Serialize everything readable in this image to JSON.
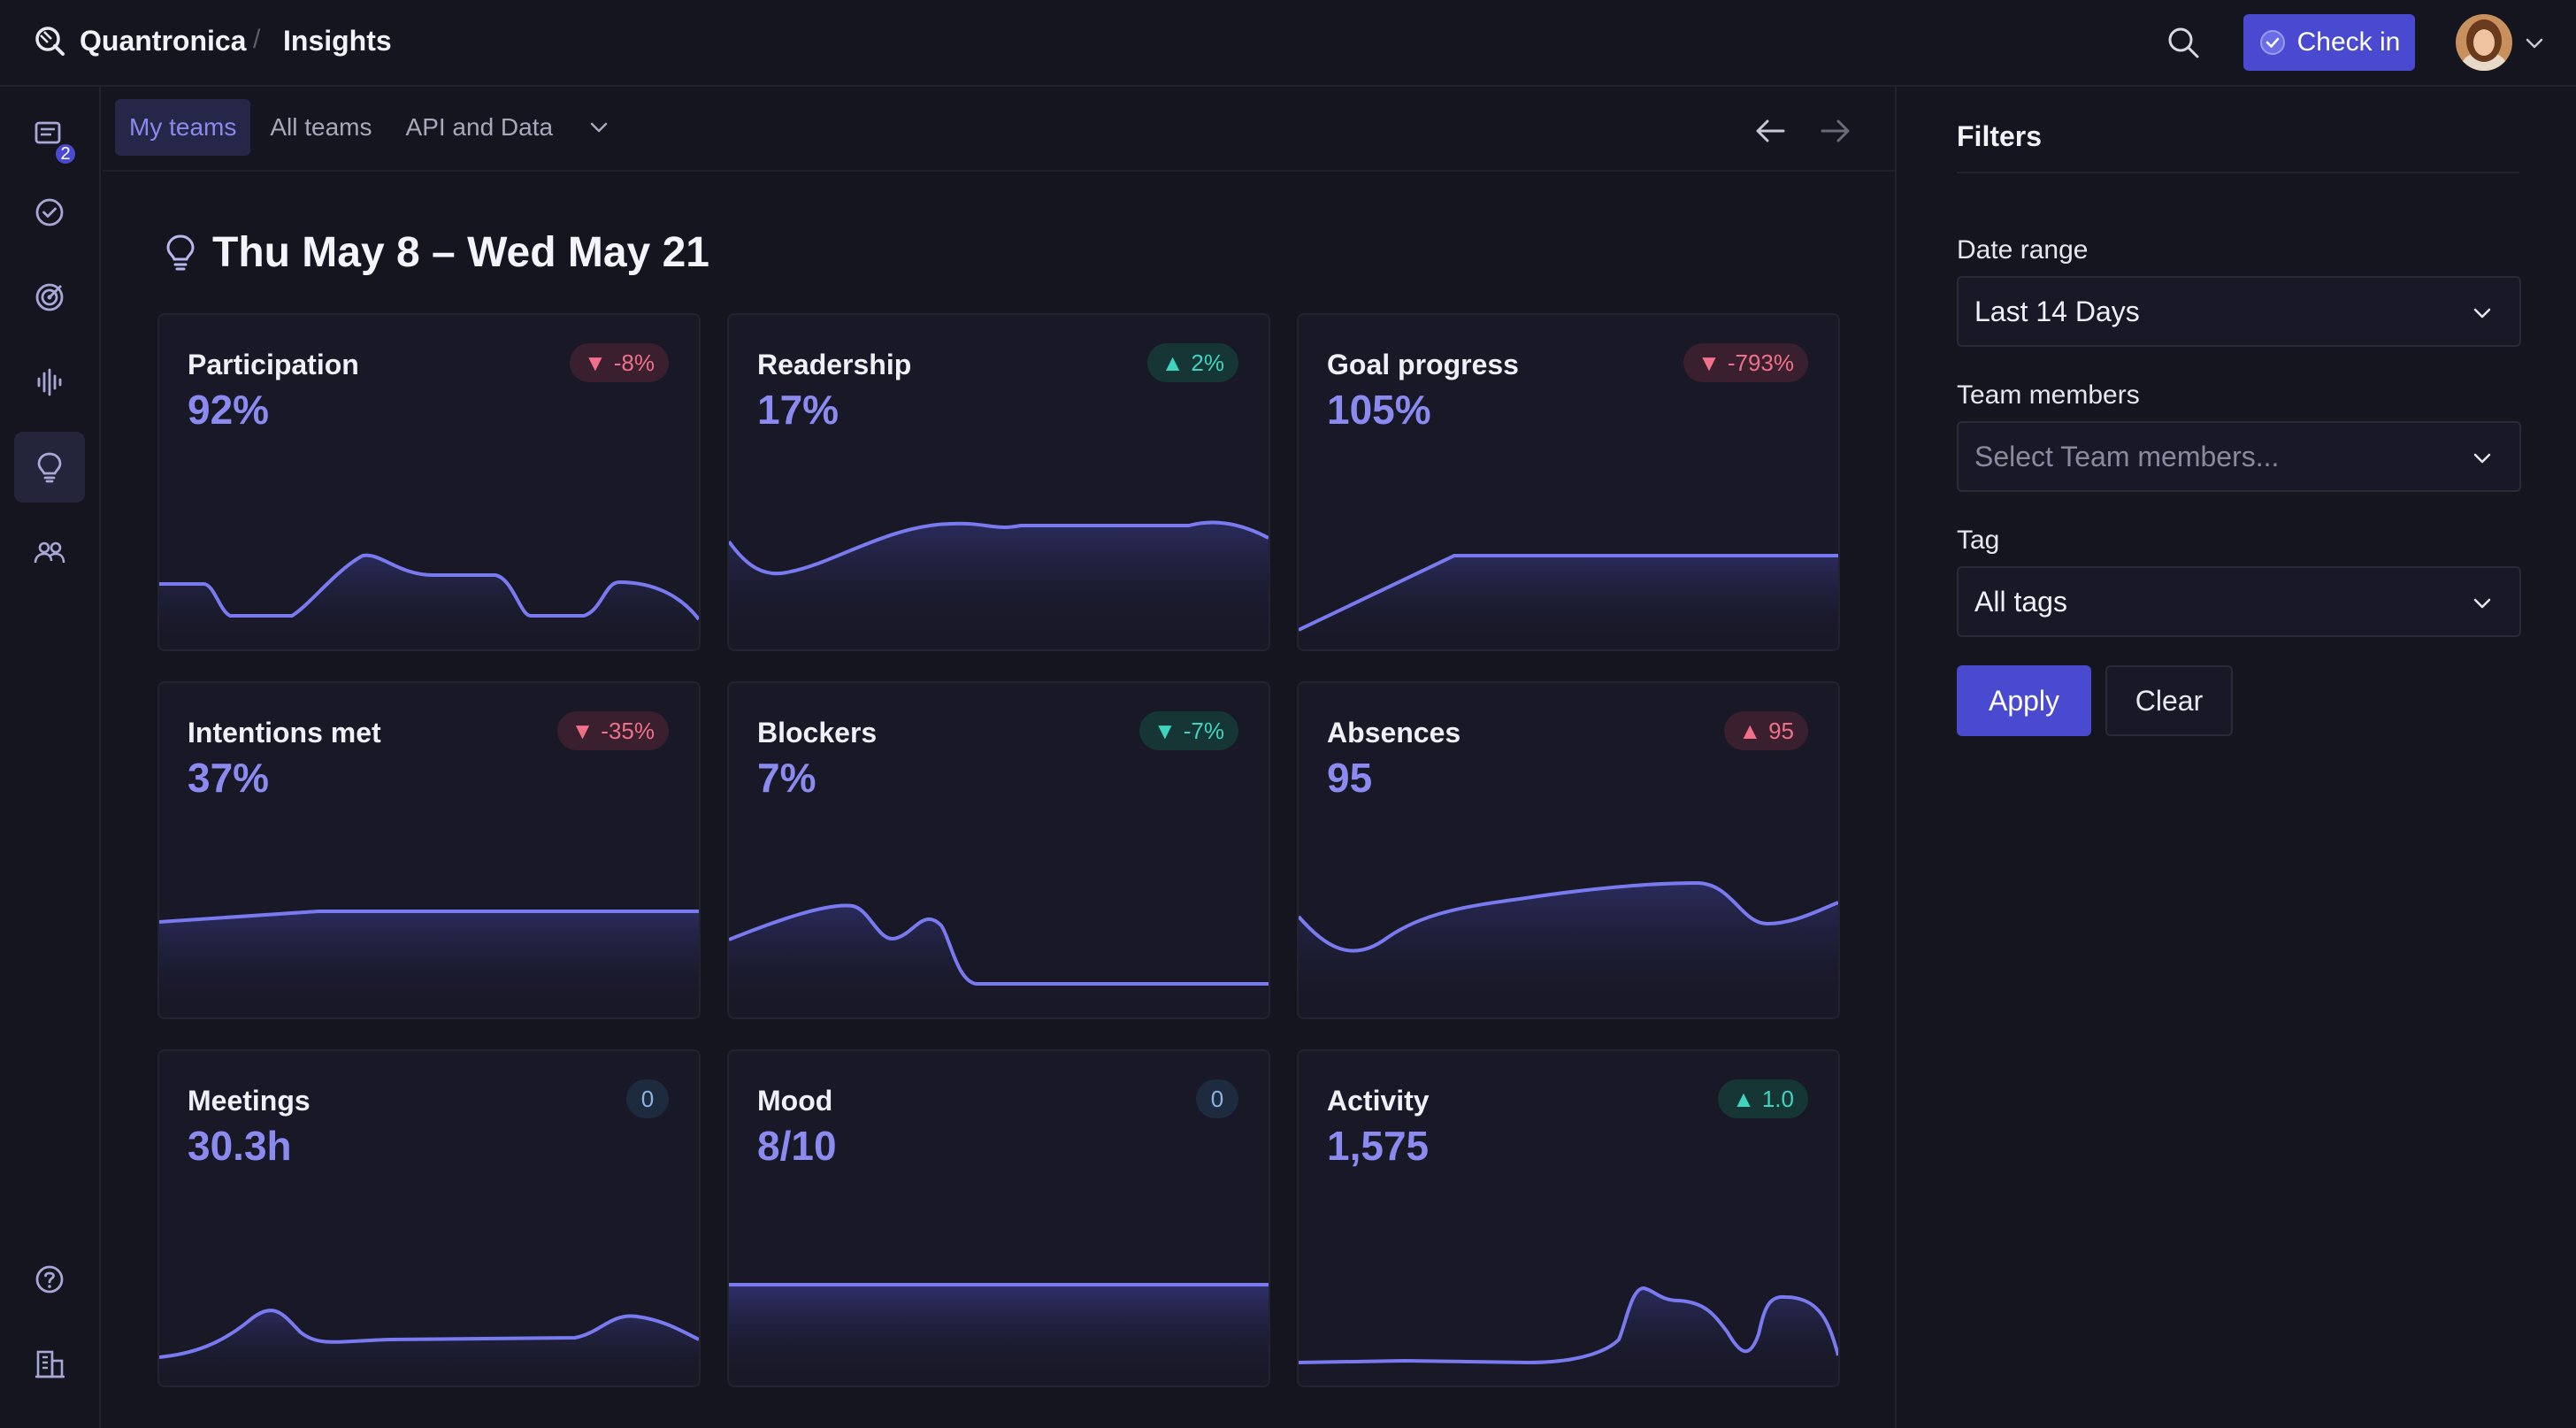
{
  "header": {
    "brand": "Quantronica",
    "separator": "/",
    "page": "Insights",
    "checkin_label": "Check in"
  },
  "sidebar": {
    "badge_count": "2",
    "items": [
      "inbox-icon",
      "check-circle-icon",
      "target-icon",
      "activity-icon",
      "lightbulb-icon",
      "team-icon",
      "help-icon",
      "building-icon"
    ]
  },
  "tabs": [
    {
      "label": "My teams",
      "active": true
    },
    {
      "label": "All teams",
      "active": false
    },
    {
      "label": "API and Data",
      "active": false
    }
  ],
  "range_title": "Thu May 8 – Wed May 21",
  "cards": [
    {
      "title": "Participation",
      "value": "92%",
      "badge": "-8%",
      "trend": "down"
    },
    {
      "title": "Readership",
      "value": "17%",
      "badge": "2%",
      "trend": "up"
    },
    {
      "title": "Goal progress",
      "value": "105%",
      "badge": "-793%",
      "trend": "down"
    },
    {
      "title": "Intentions met",
      "value": "37%",
      "badge": "-35%",
      "trend": "down"
    },
    {
      "title": "Blockers",
      "value": "7%",
      "badge": "-7%",
      "trend": "down-good"
    },
    {
      "title": "Absences",
      "value": "95",
      "badge": "95",
      "trend": "up-bad"
    },
    {
      "title": "Meetings",
      "value": "30.3h",
      "badge": "0",
      "trend": "neutral"
    },
    {
      "title": "Mood",
      "value": "8/10",
      "badge": "0",
      "trend": "neutral"
    },
    {
      "title": "Activity",
      "value": "1,575",
      "badge": "1.0",
      "trend": "up"
    }
  ],
  "filters": {
    "title": "Filters",
    "date_range_label": "Date range",
    "date_range_value": "Last 14 Days",
    "team_members_label": "Team members",
    "team_members_placeholder": "Select Team members...",
    "tag_label": "Tag",
    "tag_value": "All tags",
    "apply_label": "Apply",
    "clear_label": "Clear"
  },
  "colors": {
    "accent": "#4a4ad0",
    "value_text": "#8a8af0",
    "line": "#7a7af0",
    "badge_down": "#f0708a",
    "badge_up": "#3fd4c0"
  }
}
